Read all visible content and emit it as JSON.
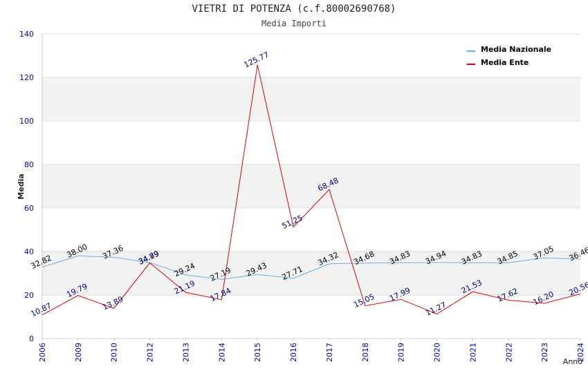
{
  "chart_data": {
    "type": "line",
    "title": "VIETRI DI POTENZA (c.f.80002690768)",
    "subtitle": "Media Importi",
    "xlabel": "Anno",
    "ylabel": "Media",
    "ylim": [
      0,
      140
    ],
    "yticks": [
      0,
      20,
      40,
      60,
      80,
      100,
      120,
      140
    ],
    "categories": [
      "2006",
      "2009",
      "2010",
      "2012",
      "2013",
      "2014",
      "2015",
      "2016",
      "2017",
      "2018",
      "2019",
      "2020",
      "2021",
      "2022",
      "2023",
      "2024"
    ],
    "series": [
      {
        "name": "Media Nazionale",
        "color": "#6aaee8",
        "label_color": "#000000",
        "values": [
          32.82,
          38.0,
          37.36,
          34.89,
          29.24,
          27.19,
          29.43,
          27.71,
          34.32,
          34.68,
          34.83,
          34.94,
          34.83,
          34.85,
          37.05,
          36.46
        ],
        "labels": [
          "32.82",
          "38.00",
          "37.36",
          "34.89",
          "29.24",
          "27.19",
          "29.43",
          "27.71",
          "34.32",
          "34.68",
          "34.83",
          "34.94",
          "34.83",
          "34.85",
          "37.05",
          "36.46"
        ]
      },
      {
        "name": "Media Ente",
        "color": "#e00000",
        "label_color": "#000080",
        "values": [
          10.87,
          19.79,
          13.89,
          34.79,
          21.19,
          17.84,
          125.77,
          51.25,
          68.48,
          15.05,
          17.99,
          11.27,
          21.53,
          17.62,
          16.2,
          20.56
        ],
        "labels": [
          "10.87",
          "19.79",
          "13.89",
          "34.79",
          "21.19",
          "17.84",
          "125.77",
          "51.25",
          "68.48",
          "15.05",
          "17.99",
          "11.27",
          "21.53",
          "17.62",
          "16.20",
          "20.56"
        ]
      }
    ],
    "grid": true,
    "legend_position": "top-right",
    "colors": {
      "axis_tick": "#0000b0",
      "band": "#f2f2f2",
      "grid": "#dddddd"
    }
  }
}
